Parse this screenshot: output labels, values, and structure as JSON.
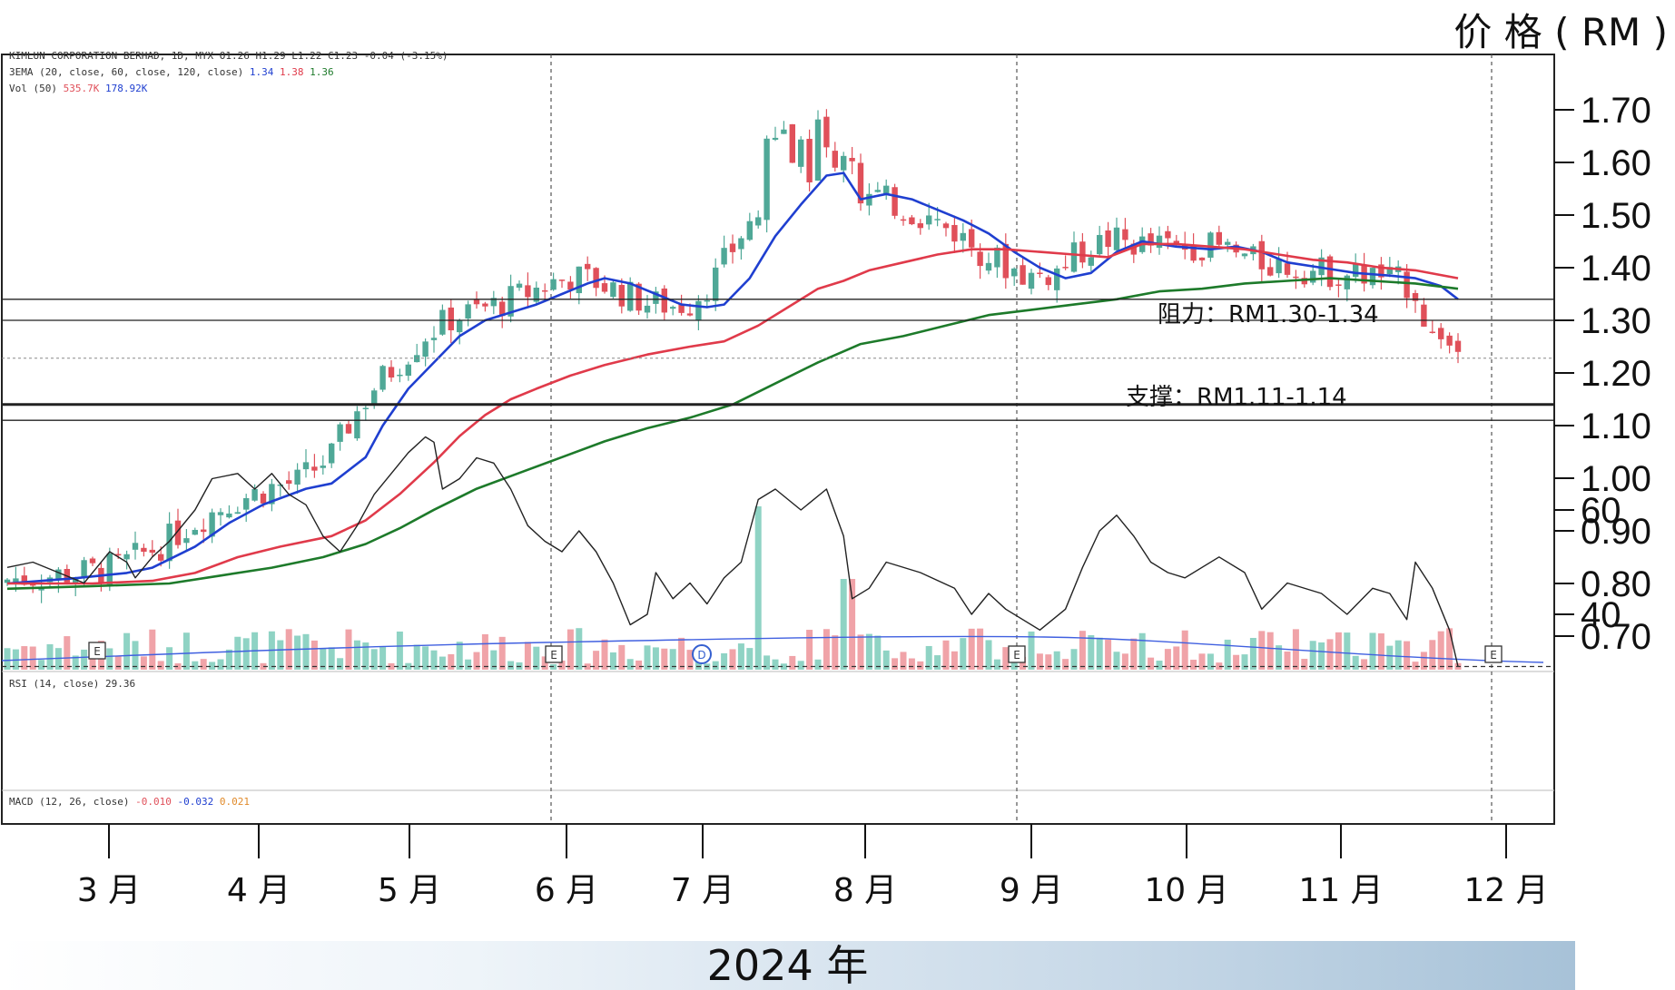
{
  "unit_label": "价 格 ( RM )",
  "year_label": "2024 年",
  "annotations": {
    "resistance": "阻力：RM1.30-1.34",
    "support": "支撑：RM1.11-1.14"
  },
  "legends": {
    "header": "KIMLUN CORPORATION BERHAD, 1D, MYX  O1.26 H1.29 L1.22 C1.23 -0.04 (-3.15%)",
    "ema": {
      "label": "3EMA (20, close, 60, close, 120, close)",
      "v1": "1.34",
      "v2": "1.38",
      "v3": "1.36"
    },
    "vol": {
      "label": "Vol (50)",
      "v1": "535.7K",
      "v2": "178.92K"
    },
    "rsi": {
      "label": "RSI (14, close)",
      "value": "29.36"
    },
    "macd": {
      "label": "MACD (12, 26, close)",
      "v1": "-0.010",
      "v2": "-0.032",
      "v3": "0.021"
    }
  },
  "colors": {
    "up": "#4fa897",
    "down": "#e0505a",
    "vol_up": "#8fd3c4",
    "vol_down": "#f0a3a8",
    "ema20": "#1f3fd0",
    "ema60": "#e03a4a",
    "ema120": "#1d7a2a",
    "rsi": "#222222"
  },
  "event_icon": "E",
  "dividend_icon": "D",
  "chart_data": {
    "type": "candlestick",
    "price_axis": {
      "ticks": [
        "1.70",
        "1.60",
        "1.50",
        "1.40",
        "1.30",
        "1.20",
        "1.10",
        "1.00",
        "0.90",
        "0.80",
        "0.70"
      ],
      "range": [
        0.636,
        1.767
      ]
    },
    "rsi_axis": {
      "ticks": [
        "60",
        "40"
      ],
      "oversold_line": 30
    },
    "months": [
      "3 月",
      "4 月",
      "5 月",
      "6 月",
      "7 月",
      "8 月",
      "9 月",
      "10 月",
      "11 月",
      "12 月"
    ],
    "horizontal_levels": [
      1.34,
      1.3,
      1.228,
      1.14,
      1.11
    ],
    "ema_series": [
      {
        "key": "ema20",
        "values": [
          [
            0,
            0.8
          ],
          [
            8,
            0.81
          ],
          [
            14,
            0.82
          ],
          [
            17,
            0.83
          ],
          [
            22,
            0.87
          ],
          [
            26,
            0.915
          ],
          [
            30,
            0.95
          ],
          [
            35,
            0.98
          ],
          [
            38,
            0.99
          ],
          [
            42,
            1.04
          ],
          [
            44,
            1.1
          ],
          [
            47,
            1.17
          ],
          [
            50,
            1.22
          ],
          [
            53,
            1.27
          ],
          [
            56,
            1.3
          ],
          [
            60,
            1.32
          ],
          [
            62,
            1.33
          ],
          [
            65,
            1.35
          ],
          [
            68,
            1.37
          ],
          [
            70,
            1.38
          ],
          [
            73,
            1.37
          ],
          [
            76,
            1.35
          ],
          [
            79,
            1.33
          ],
          [
            82,
            1.325
          ],
          [
            84,
            1.33
          ],
          [
            87,
            1.38
          ],
          [
            90,
            1.46
          ],
          [
            93,
            1.52
          ],
          [
            96,
            1.575
          ],
          [
            98,
            1.58
          ],
          [
            100,
            1.53
          ],
          [
            103,
            1.54
          ],
          [
            106,
            1.53
          ],
          [
            109,
            1.51
          ],
          [
            112,
            1.49
          ],
          [
            115,
            1.465
          ],
          [
            118,
            1.43
          ],
          [
            121,
            1.4
          ],
          [
            124,
            1.38
          ],
          [
            127,
            1.39
          ],
          [
            130,
            1.43
          ],
          [
            133,
            1.45
          ],
          [
            137,
            1.44
          ],
          [
            141,
            1.435
          ],
          [
            144,
            1.44
          ],
          [
            147,
            1.43
          ],
          [
            150,
            1.41
          ],
          [
            154,
            1.4
          ],
          [
            158,
            1.39
          ],
          [
            162,
            1.385
          ],
          [
            165,
            1.38
          ],
          [
            168,
            1.365
          ],
          [
            170,
            1.34
          ]
        ]
      },
      {
        "key": "ema60",
        "values": [
          [
            0,
            0.8
          ],
          [
            10,
            0.8
          ],
          [
            17,
            0.805
          ],
          [
            22,
            0.82
          ],
          [
            27,
            0.85
          ],
          [
            32,
            0.87
          ],
          [
            38,
            0.89
          ],
          [
            42,
            0.92
          ],
          [
            46,
            0.97
          ],
          [
            50,
            1.03
          ],
          [
            53,
            1.08
          ],
          [
            56,
            1.12
          ],
          [
            59,
            1.15
          ],
          [
            62,
            1.17
          ],
          [
            66,
            1.195
          ],
          [
            70,
            1.215
          ],
          [
            75,
            1.235
          ],
          [
            80,
            1.25
          ],
          [
            84,
            1.26
          ],
          [
            88,
            1.29
          ],
          [
            92,
            1.33
          ],
          [
            95,
            1.36
          ],
          [
            98,
            1.375
          ],
          [
            101,
            1.395
          ],
          [
            105,
            1.41
          ],
          [
            109,
            1.425
          ],
          [
            113,
            1.435
          ],
          [
            117,
            1.435
          ],
          [
            121,
            1.43
          ],
          [
            125,
            1.425
          ],
          [
            129,
            1.42
          ],
          [
            133,
            1.445
          ],
          [
            137,
            1.445
          ],
          [
            141,
            1.44
          ],
          [
            145,
            1.435
          ],
          [
            149,
            1.425
          ],
          [
            153,
            1.415
          ],
          [
            157,
            1.41
          ],
          [
            161,
            1.4
          ],
          [
            165,
            1.395
          ],
          [
            170,
            1.38
          ]
        ]
      },
      {
        "key": "ema120",
        "values": [
          [
            0,
            0.79
          ],
          [
            10,
            0.795
          ],
          [
            19,
            0.8
          ],
          [
            25,
            0.815
          ],
          [
            31,
            0.83
          ],
          [
            37,
            0.85
          ],
          [
            42,
            0.875
          ],
          [
            46,
            0.905
          ],
          [
            50,
            0.94
          ],
          [
            55,
            0.98
          ],
          [
            60,
            1.01
          ],
          [
            65,
            1.04
          ],
          [
            70,
            1.07
          ],
          [
            75,
            1.095
          ],
          [
            80,
            1.115
          ],
          [
            85,
            1.14
          ],
          [
            90,
            1.18
          ],
          [
            95,
            1.22
          ],
          [
            100,
            1.255
          ],
          [
            105,
            1.27
          ],
          [
            110,
            1.29
          ],
          [
            115,
            1.31
          ],
          [
            120,
            1.32
          ],
          [
            125,
            1.33
          ],
          [
            130,
            1.34
          ],
          [
            135,
            1.355
          ],
          [
            140,
            1.36
          ],
          [
            145,
            1.37
          ],
          [
            150,
            1.375
          ],
          [
            155,
            1.38
          ],
          [
            160,
            1.375
          ],
          [
            165,
            1.37
          ],
          [
            170,
            1.36
          ]
        ]
      }
    ],
    "rsi_values": [
      [
        0,
        49
      ],
      [
        3,
        50
      ],
      [
        6,
        48
      ],
      [
        9,
        46
      ],
      [
        12,
        52
      ],
      [
        14,
        50
      ],
      [
        15,
        47
      ],
      [
        17,
        51
      ],
      [
        19,
        54
      ],
      [
        22,
        60
      ],
      [
        24,
        66
      ],
      [
        27,
        67
      ],
      [
        29,
        64
      ],
      [
        31,
        67
      ],
      [
        33,
        63
      ],
      [
        35,
        61
      ],
      [
        37,
        55
      ],
      [
        39,
        52
      ],
      [
        41,
        57
      ],
      [
        43,
        63
      ],
      [
        45,
        67
      ],
      [
        47,
        71
      ],
      [
        49,
        74
      ],
      [
        50,
        73
      ],
      [
        51,
        64
      ],
      [
        53,
        66
      ],
      [
        55,
        70
      ],
      [
        57,
        69
      ],
      [
        59,
        64
      ],
      [
        61,
        57
      ],
      [
        63,
        54
      ],
      [
        65,
        52
      ],
      [
        67,
        56
      ],
      [
        69,
        52
      ],
      [
        71,
        46
      ],
      [
        73,
        38
      ],
      [
        75,
        40
      ],
      [
        76,
        48
      ],
      [
        78,
        43
      ],
      [
        80,
        46
      ],
      [
        82,
        42
      ],
      [
        84,
        47
      ],
      [
        86,
        50
      ],
      [
        88,
        62
      ],
      [
        90,
        64
      ],
      [
        93,
        60
      ],
      [
        96,
        64
      ],
      [
        98,
        55
      ],
      [
        99,
        43
      ],
      [
        101,
        45
      ],
      [
        103,
        50
      ],
      [
        107,
        48
      ],
      [
        111,
        45
      ],
      [
        113,
        40
      ],
      [
        115,
        44
      ],
      [
        117,
        41
      ],
      [
        121,
        37
      ],
      [
        124,
        41
      ],
      [
        126,
        49
      ],
      [
        128,
        56
      ],
      [
        130,
        59
      ],
      [
        132,
        55
      ],
      [
        134,
        50
      ],
      [
        136,
        48
      ],
      [
        138,
        47
      ],
      [
        142,
        51
      ],
      [
        145,
        48
      ],
      [
        147,
        41
      ],
      [
        150,
        46
      ],
      [
        154,
        44
      ],
      [
        157,
        40
      ],
      [
        160,
        45
      ],
      [
        162,
        44
      ],
      [
        164,
        39
      ],
      [
        165,
        50
      ],
      [
        167,
        45
      ],
      [
        169,
        37
      ],
      [
        170,
        30
      ]
    ]
  }
}
